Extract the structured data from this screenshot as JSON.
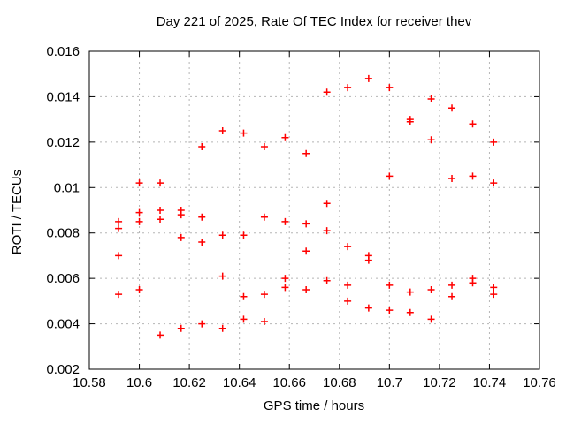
{
  "chart_data": {
    "type": "scatter",
    "title": "Day 221 of 2025, Rate Of TEC Index for receiver thev",
    "xlabel": "GPS time / hours",
    "ylabel": "ROTI / TECUs",
    "xlim": [
      10.58,
      10.76
    ],
    "ylim": [
      0.002,
      0.016
    ],
    "xticks": [
      10.58,
      10.6,
      10.62,
      10.64,
      10.66,
      10.68,
      10.7,
      10.72,
      10.74,
      10.76
    ],
    "xtick_labels": [
      "10.58",
      "10.6",
      "10.62",
      "10.64",
      "10.66",
      "10.68",
      "10.7",
      "10.72",
      "10.74",
      "10.76"
    ],
    "yticks": [
      0.002,
      0.004,
      0.006,
      0.008,
      0.01,
      0.012,
      0.014,
      0.016
    ],
    "ytick_labels": [
      "0.002",
      "0.004",
      "0.006",
      "0.008",
      "0.01",
      "0.012",
      "0.014",
      "0.016"
    ],
    "grid": true,
    "legend": false,
    "marker": "plus",
    "marker_color": "#ff0000",
    "grid_color": "#b5b5b5",
    "border_color": "#000000",
    "points": [
      [
        10.5917,
        0.0085
      ],
      [
        10.5917,
        0.0082
      ],
      [
        10.5917,
        0.007
      ],
      [
        10.5917,
        0.0053
      ],
      [
        10.6,
        0.0102
      ],
      [
        10.6,
        0.0089
      ],
      [
        10.6,
        0.0085
      ],
      [
        10.6,
        0.0055
      ],
      [
        10.6083,
        0.0102
      ],
      [
        10.6083,
        0.009
      ],
      [
        10.6083,
        0.0086
      ],
      [
        10.6083,
        0.0035
      ],
      [
        10.6167,
        0.009
      ],
      [
        10.6167,
        0.0088
      ],
      [
        10.6167,
        0.0078
      ],
      [
        10.6167,
        0.0038
      ],
      [
        10.625,
        0.0118
      ],
      [
        10.625,
        0.0087
      ],
      [
        10.625,
        0.0076
      ],
      [
        10.625,
        0.004
      ],
      [
        10.6333,
        0.0125
      ],
      [
        10.6333,
        0.0079
      ],
      [
        10.6333,
        0.0061
      ],
      [
        10.6333,
        0.0038
      ],
      [
        10.6417,
        0.0124
      ],
      [
        10.6417,
        0.0079
      ],
      [
        10.6417,
        0.0052
      ],
      [
        10.6417,
        0.0042
      ],
      [
        10.65,
        0.0118
      ],
      [
        10.65,
        0.0087
      ],
      [
        10.65,
        0.0053
      ],
      [
        10.65,
        0.0041
      ],
      [
        10.6583,
        0.0122
      ],
      [
        10.6583,
        0.0085
      ],
      [
        10.6583,
        0.006
      ],
      [
        10.6583,
        0.0056
      ],
      [
        10.6667,
        0.0115
      ],
      [
        10.6667,
        0.0084
      ],
      [
        10.6667,
        0.0072
      ],
      [
        10.6667,
        0.0055
      ],
      [
        10.675,
        0.0142
      ],
      [
        10.675,
        0.0093
      ],
      [
        10.675,
        0.0081
      ],
      [
        10.675,
        0.0059
      ],
      [
        10.6833,
        0.0144
      ],
      [
        10.6833,
        0.0074
      ],
      [
        10.6833,
        0.0057
      ],
      [
        10.6833,
        0.005
      ],
      [
        10.6917,
        0.0148
      ],
      [
        10.6917,
        0.007
      ],
      [
        10.6917,
        0.0068
      ],
      [
        10.6917,
        0.0047
      ],
      [
        10.7,
        0.0144
      ],
      [
        10.7,
        0.0105
      ],
      [
        10.7,
        0.0057
      ],
      [
        10.7,
        0.0046
      ],
      [
        10.7083,
        0.013
      ],
      [
        10.7083,
        0.0129
      ],
      [
        10.7083,
        0.0054
      ],
      [
        10.7083,
        0.0045
      ],
      [
        10.7167,
        0.0139
      ],
      [
        10.7167,
        0.0121
      ],
      [
        10.7167,
        0.0055
      ],
      [
        10.7167,
        0.0042
      ],
      [
        10.725,
        0.0135
      ],
      [
        10.725,
        0.0104
      ],
      [
        10.725,
        0.0057
      ],
      [
        10.725,
        0.0052
      ],
      [
        10.7333,
        0.0128
      ],
      [
        10.7333,
        0.0105
      ],
      [
        10.7333,
        0.006
      ],
      [
        10.7333,
        0.0058
      ],
      [
        10.7417,
        0.012
      ],
      [
        10.7417,
        0.0102
      ],
      [
        10.7417,
        0.0056
      ],
      [
        10.7417,
        0.0053
      ]
    ]
  }
}
